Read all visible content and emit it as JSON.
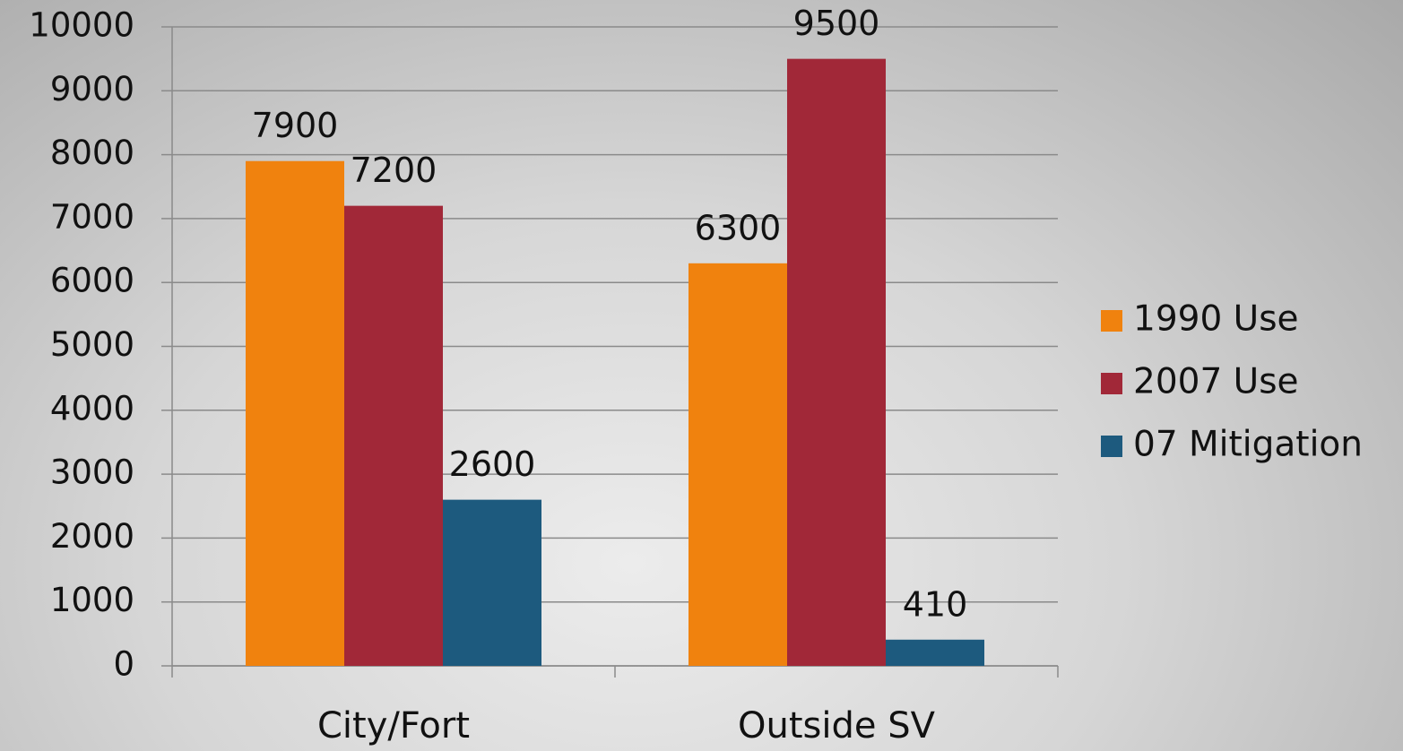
{
  "chart_data": {
    "type": "bar",
    "categories": [
      "City/Fort",
      "Outside SV"
    ],
    "series": [
      {
        "name": "1990 Use",
        "color": "#f0820e",
        "values": [
          7900,
          6300
        ]
      },
      {
        "name": "2007 Use",
        "color": "#a12838",
        "values": [
          7200,
          9500
        ]
      },
      {
        "name": "07 Mitigation",
        "color": "#1d5a7e",
        "values": [
          2600,
          410
        ]
      }
    ],
    "ylim": [
      0,
      10000
    ],
    "yticks": [
      0,
      1000,
      2000,
      3000,
      4000,
      5000,
      6000,
      7000,
      8000,
      9000,
      10000
    ],
    "grid": true,
    "legend": "right"
  }
}
